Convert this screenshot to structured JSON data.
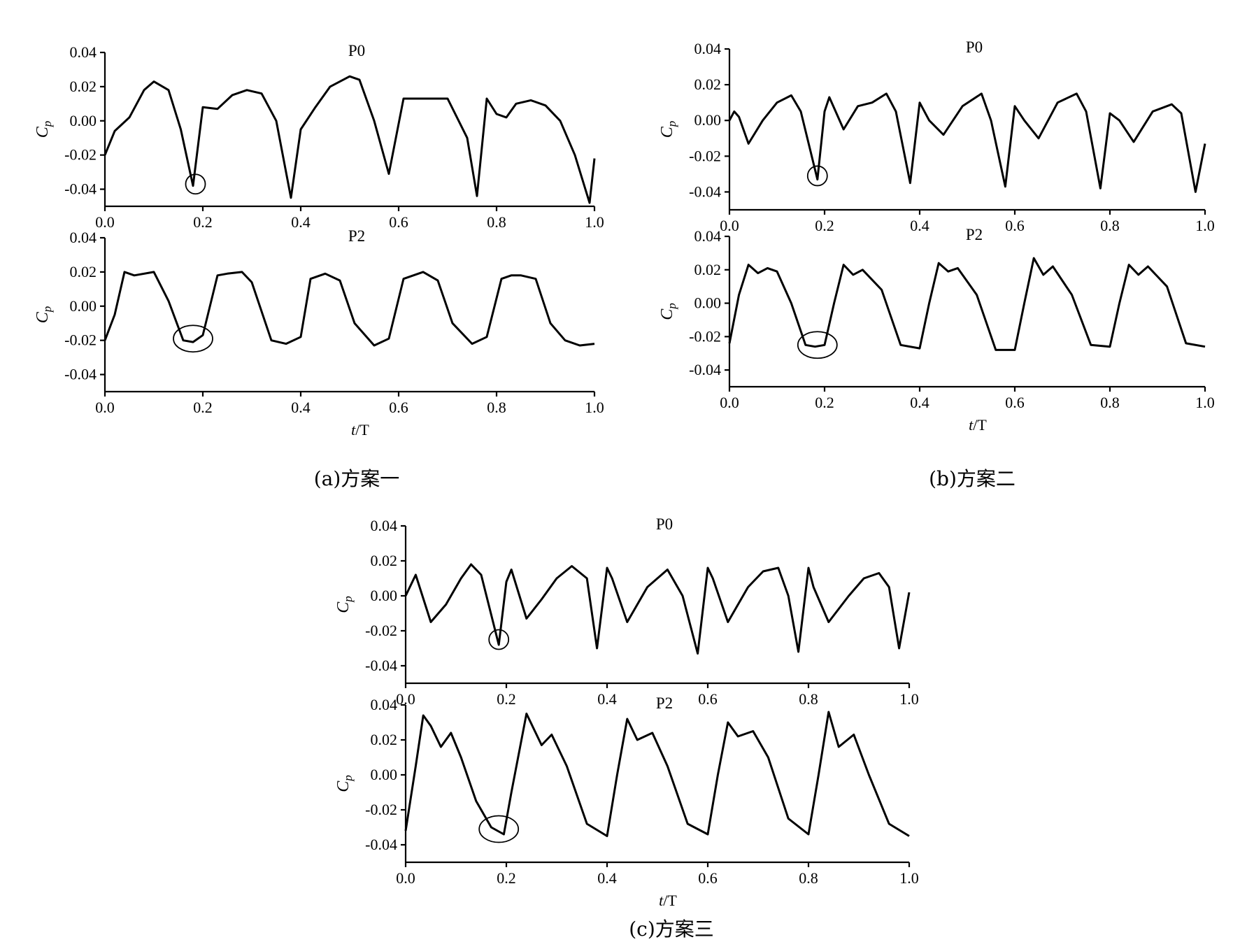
{
  "figure": {
    "captions": [
      "(a)方案一",
      "(b)方案二",
      "(c)方案三"
    ],
    "x_axis_label": "t/T",
    "y_axis_label": "Cp"
  },
  "chart_data": [
    {
      "type": "line",
      "title": "P0",
      "panel": "(a)方案一",
      "xlabel": "",
      "ylabel": "Cp",
      "xlim": [
        0.0,
        1.0
      ],
      "ylim": [
        -0.05,
        0.04
      ],
      "xticks": [
        "0.0",
        "0.2",
        "0.4",
        "0.6",
        "0.8",
        "1.0"
      ],
      "yticks": [
        "0.04",
        "0.02",
        "0.00",
        "-0.02",
        "-0.04"
      ],
      "x": [
        0.0,
        0.02,
        0.05,
        0.08,
        0.1,
        0.13,
        0.155,
        0.18,
        0.2,
        0.23,
        0.26,
        0.29,
        0.32,
        0.35,
        0.38,
        0.4,
        0.43,
        0.46,
        0.5,
        0.52,
        0.55,
        0.58,
        0.61,
        0.64,
        0.67,
        0.7,
        0.74,
        0.76,
        0.78,
        0.8,
        0.82,
        0.84,
        0.87,
        0.9,
        0.93,
        0.96,
        0.99,
        1.0
      ],
      "values": [
        -0.02,
        -0.006,
        0.002,
        0.018,
        0.023,
        0.018,
        -0.005,
        -0.038,
        0.008,
        0.007,
        0.015,
        0.018,
        0.016,
        0.0,
        -0.045,
        -0.005,
        0.008,
        0.02,
        0.026,
        0.024,
        0.0,
        -0.031,
        0.013,
        0.013,
        0.013,
        0.013,
        -0.01,
        -0.044,
        0.013,
        0.004,
        0.002,
        0.01,
        0.012,
        0.009,
        0.0,
        -0.02,
        -0.048,
        -0.022
      ],
      "markers": [
        {
          "x": 0.185,
          "y": -0.037
        }
      ]
    },
    {
      "type": "line",
      "title": "P2",
      "panel": "(a)方案一",
      "xlabel": "t/T",
      "ylabel": "Cp",
      "xlim": [
        0.0,
        1.0
      ],
      "ylim": [
        -0.05,
        0.04
      ],
      "xticks": [
        "0.0",
        "0.2",
        "0.4",
        "0.6",
        "0.8",
        "1.0"
      ],
      "yticks": [
        "0.04",
        "0.02",
        "0.00",
        "-0.02",
        "-0.04"
      ],
      "x": [
        0.0,
        0.02,
        0.04,
        0.06,
        0.1,
        0.13,
        0.16,
        0.18,
        0.2,
        0.23,
        0.25,
        0.28,
        0.3,
        0.34,
        0.37,
        0.4,
        0.42,
        0.45,
        0.48,
        0.51,
        0.55,
        0.58,
        0.61,
        0.63,
        0.65,
        0.68,
        0.71,
        0.75,
        0.78,
        0.81,
        0.83,
        0.85,
        0.88,
        0.91,
        0.94,
        0.97,
        1.0
      ],
      "values": [
        -0.02,
        -0.005,
        0.02,
        0.018,
        0.02,
        0.003,
        -0.02,
        -0.021,
        -0.017,
        0.018,
        0.019,
        0.02,
        0.014,
        -0.02,
        -0.022,
        -0.018,
        0.016,
        0.019,
        0.015,
        -0.01,
        -0.023,
        -0.019,
        0.016,
        0.018,
        0.02,
        0.015,
        -0.01,
        -0.022,
        -0.018,
        0.016,
        0.018,
        0.018,
        0.016,
        -0.01,
        -0.02,
        -0.023,
        -0.022
      ],
      "markers": [
        {
          "x": 0.18,
          "y": -0.019
        }
      ]
    },
    {
      "type": "line",
      "title": "P0",
      "panel": "(b)方案二",
      "xlabel": "",
      "ylabel": "Cp",
      "xlim": [
        0.0,
        1.0
      ],
      "ylim": [
        -0.05,
        0.04
      ],
      "xticks": [
        "0.0",
        "0.2",
        "0.4",
        "0.6",
        "0.8",
        "1.0"
      ],
      "yticks": [
        "0.04",
        "0.02",
        "0.00",
        "-0.02",
        "-0.04"
      ],
      "x": [
        0.0,
        0.01,
        0.02,
        0.04,
        0.07,
        0.1,
        0.13,
        0.15,
        0.185,
        0.2,
        0.21,
        0.24,
        0.27,
        0.3,
        0.33,
        0.35,
        0.38,
        0.4,
        0.42,
        0.45,
        0.49,
        0.53,
        0.55,
        0.58,
        0.6,
        0.62,
        0.65,
        0.69,
        0.73,
        0.75,
        0.78,
        0.8,
        0.82,
        0.85,
        0.89,
        0.93,
        0.95,
        0.98,
        1.0
      ],
      "values": [
        0.0,
        0.005,
        0.002,
        -0.013,
        0.0,
        0.01,
        0.014,
        0.005,
        -0.033,
        0.005,
        0.013,
        -0.005,
        0.008,
        0.01,
        0.015,
        0.005,
        -0.035,
        0.01,
        0.0,
        -0.008,
        0.008,
        0.015,
        0.0,
        -0.037,
        0.008,
        0.0,
        -0.01,
        0.01,
        0.015,
        0.005,
        -0.038,
        0.004,
        0.0,
        -0.012,
        0.005,
        0.009,
        0.004,
        -0.04,
        -0.013
      ],
      "markers": [
        {
          "x": 0.185,
          "y": -0.031
        }
      ]
    },
    {
      "type": "line",
      "title": "P2",
      "panel": "(b)方案二",
      "xlabel": "t/T",
      "ylabel": "Cp",
      "xlim": [
        0.0,
        1.0
      ],
      "ylim": [
        -0.05,
        0.04
      ],
      "xticks": [
        "0.0",
        "0.2",
        "0.4",
        "0.6",
        "0.8",
        "1.0"
      ],
      "yticks": [
        "0.04",
        "0.02",
        "0.00",
        "-0.02",
        "-0.04"
      ],
      "x": [
        0.0,
        0.02,
        0.04,
        0.06,
        0.08,
        0.1,
        0.13,
        0.16,
        0.18,
        0.2,
        0.22,
        0.24,
        0.26,
        0.28,
        0.32,
        0.36,
        0.4,
        0.42,
        0.44,
        0.46,
        0.48,
        0.52,
        0.56,
        0.6,
        0.62,
        0.64,
        0.66,
        0.68,
        0.72,
        0.76,
        0.8,
        0.82,
        0.84,
        0.86,
        0.88,
        0.92,
        0.96,
        1.0
      ],
      "values": [
        -0.024,
        0.005,
        0.023,
        0.018,
        0.021,
        0.019,
        0.0,
        -0.025,
        -0.026,
        -0.025,
        0.0,
        0.023,
        0.017,
        0.02,
        0.008,
        -0.025,
        -0.027,
        0.0,
        0.024,
        0.019,
        0.021,
        0.005,
        -0.028,
        -0.028,
        0.0,
        0.027,
        0.017,
        0.022,
        0.005,
        -0.025,
        -0.026,
        0.0,
        0.023,
        0.017,
        0.022,
        0.01,
        -0.024,
        -0.026
      ],
      "markers": [
        {
          "x": 0.185,
          "y": -0.025
        }
      ]
    },
    {
      "type": "line",
      "title": "P0",
      "panel": "(c)方案三",
      "xlabel": "",
      "ylabel": "Cp",
      "xlim": [
        0.0,
        1.0
      ],
      "ylim": [
        -0.05,
        0.04
      ],
      "xticks": [
        "0.0",
        "0.2",
        "0.4",
        "0.6",
        "0.8",
        "1.0"
      ],
      "yticks": [
        "0.04",
        "0.02",
        "0.00",
        "-0.02",
        "-0.04"
      ],
      "x": [
        0.0,
        0.02,
        0.05,
        0.08,
        0.11,
        0.13,
        0.15,
        0.185,
        0.2,
        0.21,
        0.24,
        0.27,
        0.3,
        0.33,
        0.36,
        0.38,
        0.4,
        0.41,
        0.44,
        0.48,
        0.52,
        0.55,
        0.58,
        0.6,
        0.61,
        0.64,
        0.68,
        0.71,
        0.74,
        0.76,
        0.78,
        0.8,
        0.81,
        0.84,
        0.88,
        0.91,
        0.94,
        0.96,
        0.98,
        1.0
      ],
      "values": [
        0.0,
        0.012,
        -0.015,
        -0.005,
        0.01,
        0.018,
        0.012,
        -0.028,
        0.008,
        0.015,
        -0.013,
        -0.002,
        0.01,
        0.017,
        0.01,
        -0.03,
        0.016,
        0.01,
        -0.015,
        0.005,
        0.015,
        0.0,
        -0.033,
        0.016,
        0.01,
        -0.015,
        0.005,
        0.014,
        0.016,
        0.0,
        -0.032,
        0.016,
        0.005,
        -0.015,
        0.0,
        0.01,
        0.013,
        0.005,
        -0.03,
        0.002
      ],
      "markers": [
        {
          "x": 0.185,
          "y": -0.025
        }
      ]
    },
    {
      "type": "line",
      "title": "P2",
      "panel": "(c)方案三",
      "xlabel": "t/T",
      "ylabel": "Cp",
      "xlim": [
        0.0,
        1.0
      ],
      "ylim": [
        -0.05,
        0.04
      ],
      "xticks": [
        "0.0",
        "0.2",
        "0.4",
        "0.6",
        "0.8",
        "1.0"
      ],
      "yticks": [
        "0.04",
        "0.02",
        "0.00",
        "-0.02",
        "-0.04"
      ],
      "x": [
        0.0,
        0.02,
        0.035,
        0.05,
        0.07,
        0.09,
        0.11,
        0.14,
        0.17,
        0.195,
        0.21,
        0.24,
        0.27,
        0.29,
        0.32,
        0.36,
        0.4,
        0.42,
        0.44,
        0.46,
        0.49,
        0.52,
        0.56,
        0.6,
        0.62,
        0.64,
        0.66,
        0.69,
        0.72,
        0.76,
        0.8,
        0.82,
        0.84,
        0.86,
        0.89,
        0.92,
        0.96,
        1.0
      ],
      "values": [
        -0.032,
        0.005,
        0.034,
        0.028,
        0.016,
        0.024,
        0.01,
        -0.015,
        -0.03,
        -0.034,
        -0.01,
        0.035,
        0.017,
        0.023,
        0.005,
        -0.028,
        -0.035,
        0.0,
        0.032,
        0.02,
        0.024,
        0.005,
        -0.028,
        -0.034,
        0.0,
        0.03,
        0.022,
        0.025,
        0.01,
        -0.025,
        -0.034,
        0.0,
        0.036,
        0.016,
        0.023,
        0.0,
        -0.028,
        -0.035
      ],
      "markers": [
        {
          "x": 0.185,
          "y": -0.031
        }
      ]
    }
  ]
}
